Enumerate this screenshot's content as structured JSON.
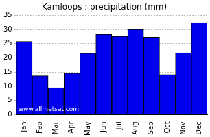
{
  "chart_data": {
    "type": "bar",
    "title": "Kamloops : precipitation (mm)",
    "categories": [
      "Jan",
      "Feb",
      "Mar",
      "Apr",
      "May",
      "Jun",
      "Jul",
      "Aug",
      "Sep",
      "Oct",
      "Nov",
      "Dec"
    ],
    "values": [
      25.8,
      13.7,
      9.5,
      14.6,
      21.6,
      28.3,
      27.6,
      30,
      27.3,
      14.1,
      21.8,
      32.4
    ],
    "color": "#0000ee",
    "ylim": [
      0,
      35
    ],
    "yticks": [
      0,
      5,
      10,
      15,
      20,
      25,
      30,
      35
    ],
    "grid": true,
    "annotation": "www.allmetsat.com"
  }
}
